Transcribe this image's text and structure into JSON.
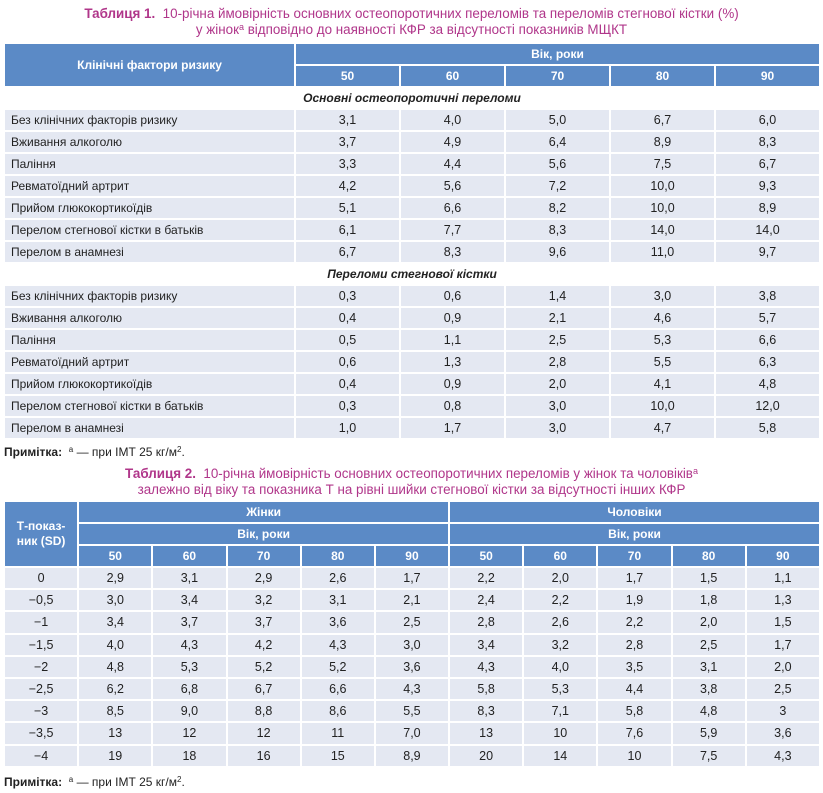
{
  "table1": {
    "caption_label": "Таблиця 1.",
    "caption_line1": "10-річна ймовірність основних остеопоротичних переломів та переломів стегнової кістки (%)",
    "caption_line2_pre": "у жінок",
    "caption_sup": "а",
    "caption_line2_post": " відповідно до наявності КФР за відсутності показників МЩКТ",
    "header_factors": "Клінічні фактори ризику",
    "header_age": "Вік, роки",
    "ages": [
      "50",
      "60",
      "70",
      "80",
      "90"
    ],
    "sections": [
      {
        "title": "Основні остеопоротичні переломи",
        "rows": [
          {
            "label": "Без клінічних факторів ризику",
            "values": [
              "3,1",
              "4,0",
              "5,0",
              "6,7",
              "6,0"
            ]
          },
          {
            "label": "Вживання алкоголю",
            "values": [
              "3,7",
              "4,9",
              "6,4",
              "8,9",
              "8,3"
            ]
          },
          {
            "label": "Паління",
            "values": [
              "3,3",
              "4,4",
              "5,6",
              "7,5",
              "6,7"
            ]
          },
          {
            "label": "Ревматоїдний артрит",
            "values": [
              "4,2",
              "5,6",
              "7,2",
              "10,0",
              "9,3"
            ]
          },
          {
            "label": "Прийом глюкокортикоїдів",
            "values": [
              "5,1",
              "6,6",
              "8,2",
              "10,0",
              "8,9"
            ]
          },
          {
            "label": "Перелом стегнової кістки в батьків",
            "values": [
              "6,1",
              "7,7",
              "8,3",
              "14,0",
              "14,0"
            ]
          },
          {
            "label": "Перелом в анамнезі",
            "values": [
              "6,7",
              "8,3",
              "9,6",
              "11,0",
              "9,7"
            ]
          }
        ]
      },
      {
        "title": "Переломи стегнової кістки",
        "rows": [
          {
            "label": "Без клінічних факторів ризику",
            "values": [
              "0,3",
              "0,6",
              "1,4",
              "3,0",
              "3,8"
            ]
          },
          {
            "label": "Вживання алкоголю",
            "values": [
              "0,4",
              "0,9",
              "2,1",
              "4,6",
              "5,7"
            ]
          },
          {
            "label": "Паління",
            "values": [
              "0,5",
              "1,1",
              "2,5",
              "5,3",
              "6,6"
            ]
          },
          {
            "label": "Ревматоїдний артрит",
            "values": [
              "0,6",
              "1,3",
              "2,8",
              "5,5",
              "6,3"
            ]
          },
          {
            "label": "Прийом глюкокортикоїдів",
            "values": [
              "0,4",
              "0,9",
              "2,0",
              "4,1",
              "4,8"
            ]
          },
          {
            "label": "Перелом стегнової кістки в батьків",
            "values": [
              "0,3",
              "0,8",
              "3,0",
              "10,0",
              "12,0"
            ]
          },
          {
            "label": "Перелом в анамнезі",
            "values": [
              "1,0",
              "1,7",
              "3,0",
              "4,7",
              "5,8"
            ]
          }
        ]
      }
    ],
    "note_label": "Примітка:",
    "note_sup": "а",
    "note_text": " — при ІМТ 25 кг/м",
    "note_sup2": "2",
    "note_end": "."
  },
  "table2": {
    "caption_label": "Таблиця 2.",
    "caption_line1_pre": "10-річна ймовірність основних остеопоротичних переломів у жінок та чоловіків",
    "caption_sup": "а",
    "caption_line2": "залежно від віку та показника Т на рівні шийки стегнової кістки за відсутності інших КФР",
    "header_t": "Т-показ-ник (SD)",
    "header_women": "Жінки",
    "header_men": "Чоловіки",
    "header_age": "Вік, роки",
    "ages": [
      "50",
      "60",
      "70",
      "80",
      "90"
    ],
    "rows": [
      {
        "t": "0",
        "women": [
          "2,9",
          "3,1",
          "2,9",
          "2,6",
          "1,7"
        ],
        "men": [
          "2,2",
          "2,0",
          "1,7",
          "1,5",
          "1,1"
        ]
      },
      {
        "t": "−0,5",
        "women": [
          "3,0",
          "3,4",
          "3,2",
          "3,1",
          "2,1"
        ],
        "men": [
          "2,4",
          "2,2",
          "1,9",
          "1,8",
          "1,3"
        ]
      },
      {
        "t": "−1",
        "women": [
          "3,4",
          "3,7",
          "3,7",
          "3,6",
          "2,5"
        ],
        "men": [
          "2,8",
          "2,6",
          "2,2",
          "2,0",
          "1,5"
        ]
      },
      {
        "t": "−1,5",
        "women": [
          "4,0",
          "4,3",
          "4,2",
          "4,3",
          "3,0"
        ],
        "men": [
          "3,4",
          "3,2",
          "2,8",
          "2,5",
          "1,7"
        ]
      },
      {
        "t": "−2",
        "women": [
          "4,8",
          "5,3",
          "5,2",
          "5,2",
          "3,6"
        ],
        "men": [
          "4,3",
          "4,0",
          "3,5",
          "3,1",
          "2,0"
        ]
      },
      {
        "t": "−2,5",
        "women": [
          "6,2",
          "6,8",
          "6,7",
          "6,6",
          "4,3"
        ],
        "men": [
          "5,8",
          "5,3",
          "4,4",
          "3,8",
          "2,5"
        ]
      },
      {
        "t": "−3",
        "women": [
          "8,5",
          "9,0",
          "8,8",
          "8,6",
          "5,5"
        ],
        "men": [
          "8,3",
          "7,1",
          "5,8",
          "4,8",
          "3"
        ]
      },
      {
        "t": "−3,5",
        "women": [
          "13",
          "12",
          "12",
          "11",
          "7,0"
        ],
        "men": [
          "13",
          "10",
          "7,6",
          "5,9",
          "3,6"
        ]
      },
      {
        "t": "−4",
        "women": [
          "19",
          "18",
          "16",
          "15",
          "8,9"
        ],
        "men": [
          "20",
          "14",
          "10",
          "7,5",
          "4,3"
        ]
      }
    ],
    "note_label": "Примітка:",
    "note_sup": "а",
    "note_text": " — при ІМТ 25 кг/м",
    "note_sup2": "2",
    "note_end": "."
  }
}
